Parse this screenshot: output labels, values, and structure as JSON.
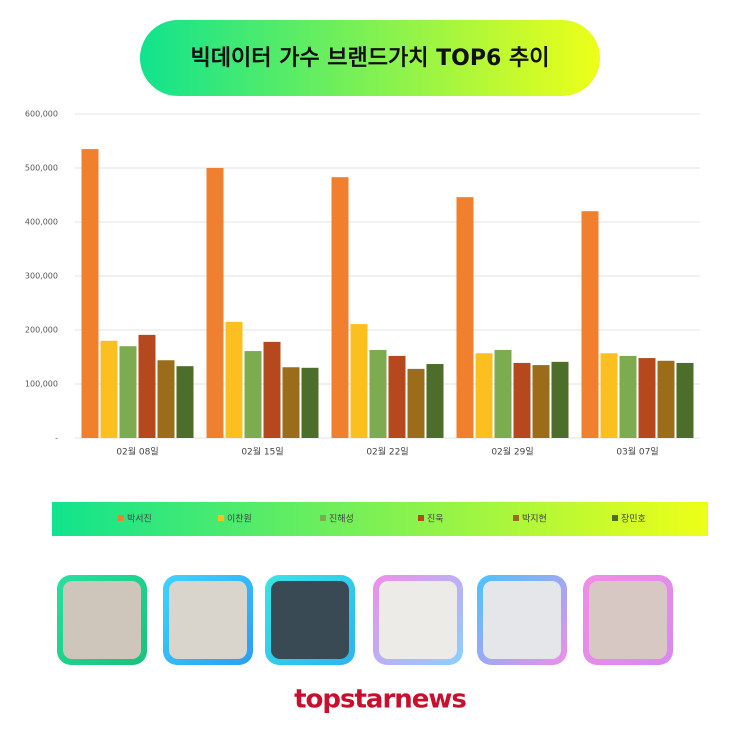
{
  "chart_data": {
    "type": "bar",
    "title": "빅데이터 가수 브랜드가치 TOP6 추이",
    "categories": [
      "02월 08일",
      "02월 15일",
      "02월 22일",
      "02월 29일",
      "03월 07일"
    ],
    "series": [
      {
        "name": "박서진",
        "color": "#f07f2e",
        "values": [
          535000,
          500000,
          483000,
          446000,
          420000
        ]
      },
      {
        "name": "이찬원",
        "color": "#fbc020",
        "values": [
          180000,
          215000,
          211000,
          157000,
          157000
        ]
      },
      {
        "name": "진해성",
        "color": "#7dab4f",
        "values": [
          170000,
          161000,
          163000,
          163000,
          152000
        ]
      },
      {
        "name": "진욱",
        "color": "#b5481c",
        "values": [
          191000,
          178000,
          152000,
          139000,
          148000
        ]
      },
      {
        "name": "박지현",
        "color": "#9b6d1b",
        "values": [
          144000,
          131000,
          128000,
          135000,
          143000
        ]
      },
      {
        "name": "장민호",
        "color": "#4d6e2b",
        "values": [
          133000,
          130000,
          137000,
          141000,
          139000
        ]
      }
    ],
    "ylim": [
      0,
      600000
    ],
    "yticks": [
      {
        "value": 0,
        "label": "-"
      },
      {
        "value": 100000,
        "label": "100,000"
      },
      {
        "value": 200000,
        "label": "200,000"
      },
      {
        "value": 300000,
        "label": "300,000"
      },
      {
        "value": 400000,
        "label": "400,000"
      },
      {
        "value": 500000,
        "label": "500,000"
      },
      {
        "value": 600000,
        "label": "600,000"
      }
    ],
    "grid": true,
    "logo": "topstarnews"
  }
}
